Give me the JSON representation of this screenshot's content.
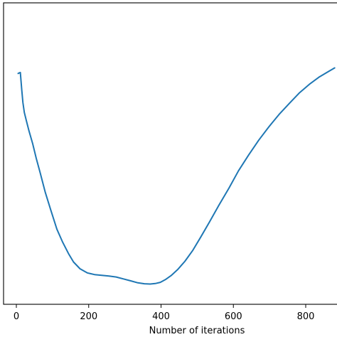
{
  "chart_data": {
    "type": "line",
    "title": "",
    "xlabel": "Number of iterations",
    "ylabel": "",
    "xlim": [
      -35,
      880
    ],
    "ylim": [
      0,
      1
    ],
    "xticks": [
      0,
      200,
      400,
      600,
      800
    ],
    "xtick_labels": [
      "0",
      "200",
      "400",
      "600",
      "800"
    ],
    "grid": false,
    "legend": "none",
    "series": [
      {
        "color": "#1f77b4",
        "x": [
          5,
          9,
          11,
          12,
          15,
          18,
          22,
          28,
          35,
          45,
          55,
          66,
          80,
          95,
          112,
          128,
          144,
          158,
          176,
          196,
          216,
          236,
          256,
          276,
          296,
          316,
          336,
          354,
          370,
          384,
          398,
          412,
          428,
          446,
          466,
          488,
          510,
          534,
          560,
          588,
          614,
          642,
          670,
          698,
          726,
          754,
          782,
          810,
          838,
          862,
          880
        ],
        "y": [
          0.902,
          0.905,
          0.906,
          0.888,
          0.834,
          0.782,
          0.741,
          0.705,
          0.664,
          0.612,
          0.551,
          0.49,
          0.41,
          0.338,
          0.258,
          0.204,
          0.157,
          0.122,
          0.094,
          0.077,
          0.07,
          0.067,
          0.064,
          0.06,
          0.052,
          0.044,
          0.036,
          0.032,
          0.031,
          0.033,
          0.038,
          0.049,
          0.066,
          0.091,
          0.125,
          0.171,
          0.226,
          0.288,
          0.357,
          0.428,
          0.499,
          0.564,
          0.626,
          0.681,
          0.732,
          0.777,
          0.821,
          0.857,
          0.888,
          0.909,
          0.925
        ]
      }
    ]
  }
}
